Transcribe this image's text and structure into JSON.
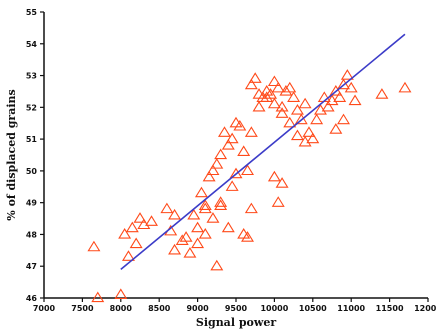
{
  "chart_data": {
    "type": "scatter",
    "title": "",
    "xlabel": "Signal power",
    "ylabel": "% of displaced grains",
    "xlim": [
      7000,
      12000
    ],
    "ylim": [
      46,
      55
    ],
    "xticks": [
      7000,
      7500,
      8000,
      8500,
      9000,
      9500,
      10000,
      10500,
      11000,
      11500,
      12000
    ],
    "yticks": [
      46,
      47,
      48,
      49,
      50,
      51,
      52,
      53,
      54,
      55
    ],
    "grid": false,
    "marker": "triangle",
    "colors": {
      "points": "#ff4a1a",
      "fit_line": "#3c3cc8",
      "axis": "#111111"
    },
    "series": [
      {
        "kind": "points",
        "x": [
          8000,
          7700,
          7650,
          8200,
          8050,
          8150,
          8300,
          8250,
          8400,
          8100,
          8700,
          8650,
          8800,
          8850,
          9000,
          8950,
          9100,
          9050,
          9150,
          9200,
          9250,
          8900,
          9100,
          9300,
          9200,
          9100,
          9000,
          8600,
          9300,
          9400,
          9450,
          9350,
          9500,
          9550,
          9600,
          9450,
          9500,
          9650,
          9700,
          9250,
          9800,
          9850,
          9900,
          9950,
          10000,
          10050,
          10100,
          10150,
          10200,
          10250,
          9700,
          9750,
          9800,
          9900,
          10000,
          10100,
          10200,
          10300,
          10350,
          10400,
          10450,
          10500,
          10550,
          10600,
          10650,
          10700,
          10750,
          10800,
          10850,
          10900,
          10950,
          11000,
          11050,
          10800,
          10900,
          11400,
          11700,
          9300,
          9400,
          8700,
          10000,
          10100,
          10050,
          10300,
          10400,
          9600,
          9650,
          9700
        ],
        "y": [
          46.1,
          46.0,
          47.6,
          47.7,
          48.0,
          48.2,
          48.3,
          48.5,
          48.4,
          47.3,
          47.5,
          48.1,
          47.8,
          47.9,
          48.2,
          48.6,
          48.9,
          49.3,
          49.8,
          50.0,
          50.2,
          47.4,
          48.8,
          49.0,
          48.5,
          48.0,
          47.7,
          48.8,
          50.5,
          50.8,
          51.0,
          51.2,
          51.5,
          51.4,
          50.6,
          49.5,
          49.9,
          50.0,
          51.2,
          47.0,
          52.0,
          52.3,
          52.5,
          52.4,
          52.8,
          52.6,
          52.0,
          52.5,
          52.6,
          52.3,
          52.7,
          52.9,
          52.4,
          52.3,
          52.1,
          51.8,
          51.5,
          51.9,
          51.6,
          52.1,
          51.2,
          51.0,
          51.6,
          51.9,
          52.3,
          52.0,
          52.2,
          52.5,
          52.3,
          52.7,
          53.0,
          52.6,
          52.2,
          51.3,
          51.6,
          52.4,
          52.6,
          48.9,
          48.2,
          48.6,
          49.8,
          49.6,
          49.0,
          51.1,
          50.9,
          48.0,
          47.9,
          48.8
        ]
      },
      {
        "kind": "fit_line",
        "x": [
          8000,
          11700
        ],
        "y": [
          46.9,
          54.3
        ]
      }
    ]
  }
}
